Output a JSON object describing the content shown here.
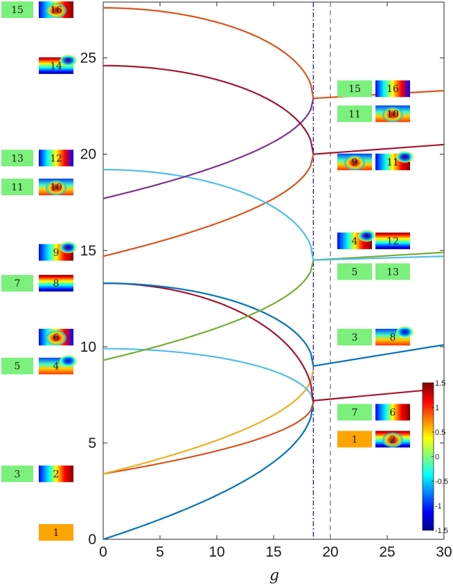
{
  "chart_data": {
    "type": "line",
    "xlabel": "g",
    "xlim": [
      0,
      30
    ],
    "ylim": [
      0,
      27.9
    ],
    "xticks": [
      0,
      5,
      10,
      15,
      20,
      25,
      30
    ],
    "yticks": [
      0,
      5,
      10,
      15,
      20,
      25
    ],
    "grid": false,
    "critical_lines": [
      {
        "x": 18.5,
        "color": "#2020c0",
        "style": "dash-dot"
      },
      {
        "x": 20,
        "color": "#808080",
        "style": "dashed"
      }
    ],
    "g_critical": 18.5,
    "curves": [
      {
        "color": "#0072BD",
        "E0": 0,
        "E1": 7.1,
        "shape": "rising"
      },
      {
        "color": "#D95319",
        "E0": 3.4,
        "E1": 7.1,
        "shape": "rising"
      },
      {
        "color": "#EDB120",
        "E0": 3.4,
        "E1": 8.8,
        "shape": "rising"
      },
      {
        "color": "#4DBEEE",
        "E0": 9.9,
        "E1": 7.1,
        "shape": "falling"
      },
      {
        "color": "#A2142F",
        "E0": 13.3,
        "E1": 7.1,
        "shape": "falling"
      },
      {
        "color": "#0072BD",
        "E0": 13.3,
        "E1": 9.0,
        "shape": "falling"
      },
      {
        "color": "#77AC30",
        "E0": 9.3,
        "E1": 14.5,
        "shape": "rising"
      },
      {
        "color": "#D95319",
        "E0": 14.7,
        "E1": 20.0,
        "shape": "rising"
      },
      {
        "color": "#4DBEEE",
        "E0": 19.2,
        "E1": 14.5,
        "shape": "falling"
      },
      {
        "color": "#7E2F8E",
        "E0": 17.7,
        "E1": 22.9,
        "shape": "rising"
      },
      {
        "color": "#A2142F",
        "E0": 24.6,
        "E1": 20.0,
        "shape": "falling"
      },
      {
        "color": "#D95319",
        "E0": 27.6,
        "E1": 22.9,
        "shape": "falling"
      }
    ],
    "branches": [
      {
        "color": "#D95319",
        "x": [
          18.5,
          30
        ],
        "y": [
          22.9,
          23.3
        ]
      },
      {
        "color": "#A2142F",
        "x": [
          18.5,
          30
        ],
        "y": [
          20.0,
          20.5
        ]
      },
      {
        "color": "#77AC30",
        "x": [
          18.5,
          30
        ],
        "y": [
          14.5,
          14.9
        ]
      },
      {
        "color": "#4DBEEE",
        "x": [
          18.5,
          30
        ],
        "y": [
          14.5,
          14.7
        ]
      },
      {
        "color": "#0072BD",
        "x": [
          18.5,
          30
        ],
        "y": [
          9.0,
          10.1
        ]
      },
      {
        "color": "#A2142F",
        "x": [
          18.5,
          28.5
        ],
        "y": [
          7.2,
          7.75
        ]
      }
    ],
    "colorbar": {
      "min": -1.5,
      "max": 1.5,
      "ticks": [
        "1.5",
        "1",
        "0.5",
        "0",
        "-0.5",
        "-1",
        "-1.5"
      ]
    },
    "left_labels": [
      {
        "a": "15",
        "b": "16",
        "y": 27.6
      },
      {
        "b": "14",
        "y": 24.6
      },
      {
        "a": "13",
        "b": "12",
        "y": 19.8
      },
      {
        "a": "11",
        "b": "10",
        "y": 18.3
      },
      {
        "b": "9",
        "y": 14.9
      },
      {
        "a": "7",
        "b": "8",
        "y": 13.3
      },
      {
        "b": "6",
        "y": 10.5
      },
      {
        "a": "5",
        "b": "4",
        "y": 9.0
      },
      {
        "a": "3",
        "b": "2",
        "y": 3.4
      },
      {
        "b": "1",
        "y": 0
      }
    ],
    "right_labels": [
      {
        "a": "15",
        "b": "16",
        "y": 23.4
      },
      {
        "a": "11",
        "b": "10",
        "y": 22.1
      },
      {
        "a": "9",
        "b": "11",
        "y": 19.6
      },
      {
        "a": "4",
        "b": "12",
        "y": 15.5
      },
      {
        "a": "5",
        "b": "13",
        "y": 13.9
      },
      {
        "a": "3",
        "b": "8",
        "y": 10.5
      },
      {
        "a": "7",
        "b": "6",
        "y": 6.6
      },
      {
        "a": "1",
        "b": "2",
        "y": 5.2
      }
    ]
  }
}
